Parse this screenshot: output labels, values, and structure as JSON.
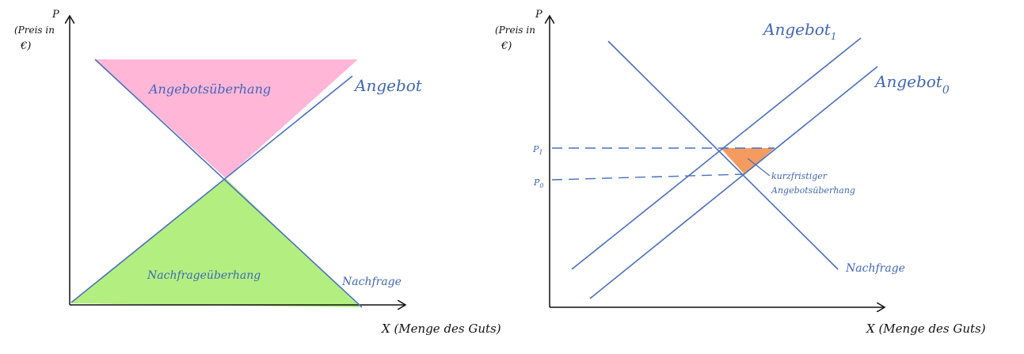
{
  "colors": {
    "curve": "#4a6fc0",
    "axis": "#111111",
    "supply_surplus_fill": "#ff9ec9",
    "demand_surplus_fill": "#a6ec6a",
    "short_term_fill": "#f3914f"
  },
  "left_diagram": {
    "y_axis_label_line1": "(Preis in",
    "y_axis_label_line2": "€)",
    "y_axis_symbol": "P",
    "x_axis_label": "X (Menge des Guts)",
    "supply_label": "Angebot",
    "demand_label": "Nachfrage",
    "supply_surplus_label": "Angebotsüberhang",
    "demand_surplus_label": "Nachfrageüberhang"
  },
  "right_diagram": {
    "y_axis_label_line1": "(Preis in",
    "y_axis_label_line2": "€)",
    "y_axis_symbol": "P",
    "x_axis_label": "X (Menge des Guts)",
    "supply_1_label": "Angebot",
    "supply_1_subscript": "1",
    "supply_0_label": "Angebot",
    "supply_0_subscript": "0",
    "demand_label": "Nachfrage",
    "p1_label": "P",
    "p1_subscript": "1",
    "p0_label": "P",
    "p0_subscript": "0",
    "annotation_line1": "kurzfristiger",
    "annotation_line2": "Angebotsüberhang"
  }
}
